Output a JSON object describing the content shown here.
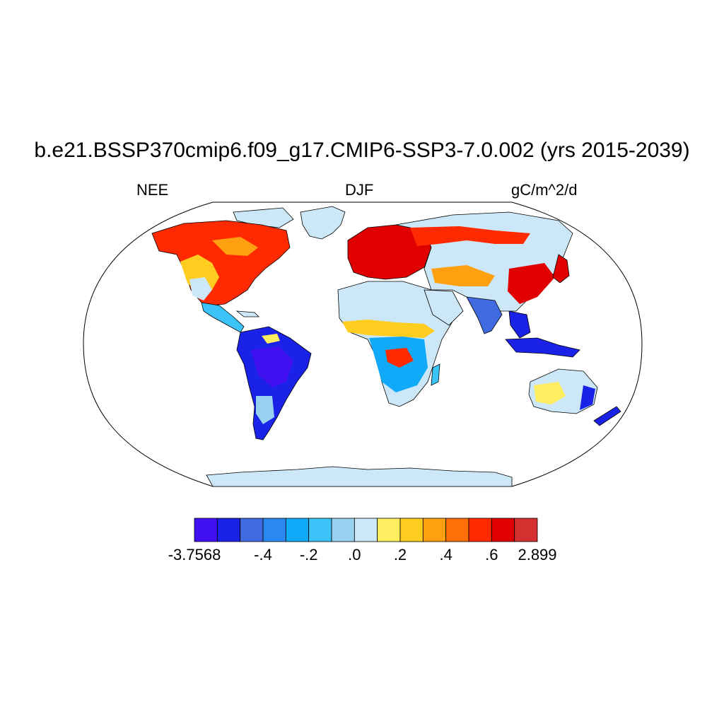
{
  "title": "b.e21.BSSP370cmip6.f09_g17.CMIP6-SSP3-7.0.002 (yrs 2015-2039)",
  "variable": "NEE",
  "season": "DJF",
  "units": "gC/m^2/d",
  "colorbar": {
    "colors": [
      "#4010f0",
      "#1a22e8",
      "#3f6ae0",
      "#2a88f0",
      "#10aaf8",
      "#3cc4f8",
      "#98d0f0",
      "#cce8f8",
      "#ffee60",
      "#ffcc20",
      "#ffa010",
      "#ff7008",
      "#ff2a00",
      "#e00000",
      "#d43030"
    ],
    "labels": [
      "-3.7568",
      "-.4",
      "-.2",
      ".0",
      ".2",
      ".4",
      ".6",
      "2.899"
    ],
    "label_bins": [
      0,
      3,
      5,
      7,
      9,
      11,
      13,
      15
    ]
  },
  "map_colors": {
    "ocean": "#ffffff",
    "land_base": "#cce8f8",
    "coast": "#000000"
  }
}
